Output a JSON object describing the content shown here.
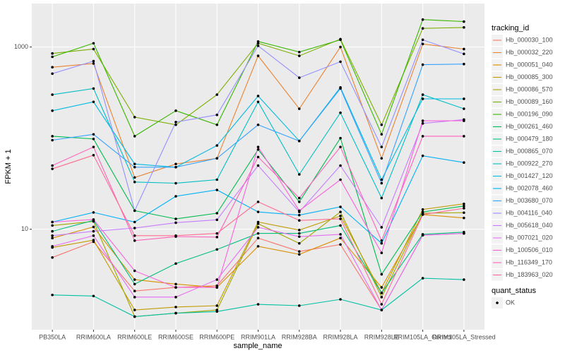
{
  "chart_data": {
    "type": "line",
    "log_y": true,
    "grid": true,
    "x_label": "sample_name",
    "y_label": "FPKM + 1",
    "categories": [
      "PB350LA",
      "RRIM600LA",
      "RRIM600LE",
      "RRIM600SE",
      "RRIM600PE",
      "RRIM901LA",
      "RRIM928BA",
      "RRIM928LA",
      "RRIM928LE",
      "RRIM105LA_Control",
      "RRIM105LA_Stressed"
    ],
    "ylim": [
      0.79,
      3000
    ],
    "yticks": [
      10,
      1000
    ],
    "legend_title": "tracking_id",
    "shape_legend": {
      "title": "quant_status",
      "labels": [
        "OK"
      ]
    },
    "series": [
      {
        "name": "Hb_000030_100",
        "color": "#F8766D",
        "values": [
          4.9,
          7.3,
          2.1,
          2.3,
          2.4,
          8.0,
          5.7,
          6.8,
          1.3,
          8.6,
          9.0
        ]
      },
      {
        "name": "Hb_000032_220",
        "color": "#EA8331",
        "values": [
          600,
          660,
          37,
          52,
          60,
          800,
          210,
          1000,
          60,
          1080,
          950
        ]
      },
      {
        "name": "Hb_000051_040",
        "color": "#D89000",
        "values": [
          8.0,
          10.6,
          2.8,
          2.5,
          2.3,
          6.5,
          5.3,
          8.0,
          2.3,
          14.5,
          13.3
        ]
      },
      {
        "name": "Hb_000085_300",
        "color": "#C09B00",
        "values": [
          6.3,
          7.6,
          1.3,
          1.4,
          1.45,
          12.0,
          9.8,
          14.0,
          2.0,
          16.5,
          19.0
        ]
      },
      {
        "name": "Hb_000086_570",
        "color": "#A3A500",
        "values": [
          11.0,
          12.2,
          1.1,
          1.2,
          1.3,
          11.5,
          7.0,
          15.5,
          1.8,
          15.0,
          15.2
        ]
      },
      {
        "name": "Hb_000089_160",
        "color": "#7CAE00",
        "values": [
          850,
          950,
          170,
          140,
          300,
          1100,
          800,
          1220,
          140,
          1600,
          1640
        ]
      },
      {
        "name": "Hb_000196_090",
        "color": "#39B600",
        "values": [
          780,
          1100,
          105,
          200,
          140,
          1150,
          880,
          1200,
          110,
          2000,
          1900
        ]
      },
      {
        "name": "Hb_000261_460",
        "color": "#00BB4E",
        "values": [
          105,
          98,
          16,
          13,
          15,
          75,
          20,
          100,
          3.2,
          15.5,
          18.0
        ]
      },
      {
        "name": "Hb_000479_180",
        "color": "#00BF7D",
        "values": [
          9.5,
          12.5,
          2.5,
          4.2,
          6.0,
          9.0,
          9.0,
          11.0,
          2.0,
          8.8,
          9.3
        ]
      },
      {
        "name": "Hb_000865_070",
        "color": "#00C1A3",
        "values": [
          1.9,
          1.85,
          1.1,
          1.2,
          1.25,
          1.5,
          1.45,
          1.7,
          1.3,
          2.9,
          2.8
        ]
      },
      {
        "name": "Hb_000922_270",
        "color": "#00BFC4",
        "values": [
          300,
          350,
          33,
          32,
          35,
          250,
          40,
          190,
          22,
          300,
          210
        ]
      },
      {
        "name": "Hb_001427_120",
        "color": "#00BAE0",
        "values": [
          200,
          250,
          52,
          48,
          83,
          290,
          93,
          360,
          35,
          270,
          270
        ]
      },
      {
        "name": "Hb_002078_460",
        "color": "#00B0F6",
        "values": [
          12.0,
          15.3,
          12.0,
          23,
          27,
          15.5,
          14.3,
          17.6,
          7.0,
          64,
          54
        ]
      },
      {
        "name": "Hb_003680_070",
        "color": "#35A2FF",
        "values": [
          95,
          110,
          48,
          48,
          60,
          140,
          93,
          350,
          32,
          640,
          650
        ]
      },
      {
        "name": "Hb_004116_040",
        "color": "#9590FF",
        "values": [
          510,
          700,
          16,
          150,
          180,
          1030,
          460,
          690,
          80,
          1200,
          840
        ]
      },
      {
        "name": "Hb_005618_040",
        "color": "#C77CFF",
        "values": [
          8.5,
          9.5,
          10.3,
          11.8,
          12.7,
          50,
          15.5,
          50,
          10.5,
          145,
          160
        ]
      },
      {
        "name": "Hb_007021_020",
        "color": "#E76BF3",
        "values": [
          6.5,
          8.5,
          1.8,
          1.8,
          2.8,
          10.5,
          8.3,
          8.8,
          1.3,
          8.6,
          9.0
        ]
      },
      {
        "name": "Hb_100506_010",
        "color": "#FA62DB",
        "values": [
          12.0,
          12.8,
          3.5,
          2.3,
          2.3,
          80,
          16,
          35,
          5.5,
          155,
          155
        ]
      },
      {
        "name": "Hb_116349_170",
        "color": "#FF62BC",
        "values": [
          50,
          80,
          7.5,
          8.3,
          8.2,
          62,
          22,
          80,
          7.5,
          105,
          105
        ]
      },
      {
        "name": "Hb_183963_020",
        "color": "#FF6C91",
        "values": [
          46,
          65,
          8.5,
          8.5,
          9.0,
          20,
          12.5,
          13.0,
          1.5,
          14.5,
          17.0
        ]
      }
    ]
  }
}
